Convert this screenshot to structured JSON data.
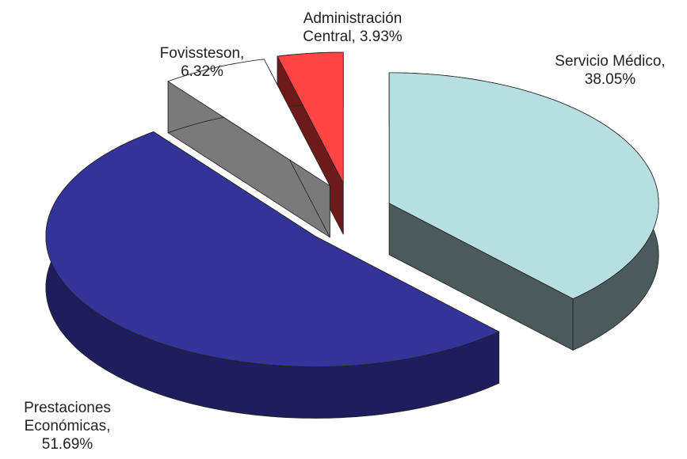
{
  "chart_data": {
    "type": "pie3d",
    "categories": [
      "Servicio Médico,",
      "Prestaciones Económicas,",
      "Fovissteson,",
      "Administración Central,"
    ],
    "values": [
      38.05,
      51.69,
      6.32,
      3.93
    ],
    "value_labels": [
      "38.05%",
      "51.69%",
      "6.32%",
      "3.93%"
    ],
    "colors": [
      "#b8dfe0",
      "#333399",
      "#ffffff",
      "#ff4444"
    ],
    "side_colors": [
      "#4b5a5a",
      "#1e1e5c",
      "#7a7a7a",
      "#6e1a1a"
    ]
  }
}
